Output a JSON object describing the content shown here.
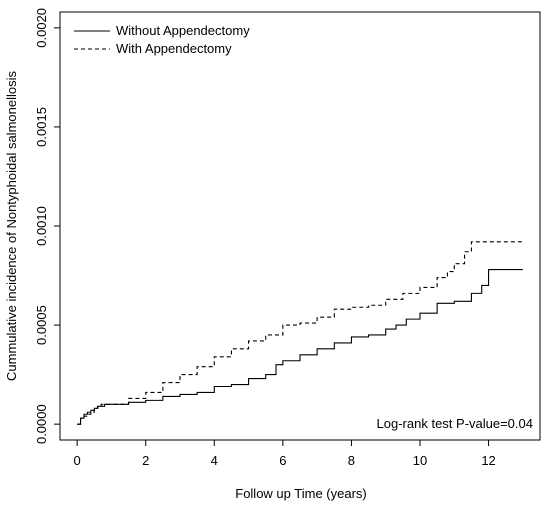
{
  "chart_data": {
    "type": "line",
    "title": "",
    "xlabel": "Follow up Time (years)",
    "ylabel": "Cummulative incidence of Nontyphoidal salmonellosis",
    "xlim": [
      -0.5,
      13.5
    ],
    "ylim": [
      -8e-05,
      0.00208
    ],
    "x_ticks": [
      0,
      2,
      4,
      6,
      8,
      10,
      12
    ],
    "x_tick_labels": [
      "0",
      "2",
      "4",
      "6",
      "8",
      "10",
      "12"
    ],
    "y_ticks": [
      0,
      0.0005,
      0.001,
      0.0015,
      0.002
    ],
    "y_tick_labels": [
      "0.0000",
      "0.0005",
      "0.0010",
      "0.0015",
      "0.0020"
    ],
    "legend_position": "top-left",
    "grid": false,
    "annotation": "Log-rank test P-value=0.04",
    "series": [
      {
        "name": "Without Appendectomy",
        "line_style": "solid",
        "color": "#000000",
        "x": [
          0,
          0.1,
          0.2,
          0.3,
          0.4,
          0.5,
          0.6,
          0.7,
          0.8,
          0.9,
          1.0,
          1.5,
          2.0,
          2.5,
          3.0,
          3.5,
          4.0,
          4.5,
          5.0,
          5.5,
          5.8,
          6.0,
          6.5,
          7.0,
          7.5,
          8.0,
          8.5,
          9.0,
          9.3,
          9.6,
          10.0,
          10.5,
          11.0,
          11.5,
          11.8,
          12.0,
          13.0
        ],
        "values": [
          0.0,
          3e-05,
          5e-05,
          6e-05,
          7e-05,
          8e-05,
          9e-05,
          9e-05,
          0.0001,
          0.0001,
          0.0001,
          0.00011,
          0.00012,
          0.00014,
          0.00015,
          0.00016,
          0.00019,
          0.0002,
          0.00023,
          0.00025,
          0.0003,
          0.00032,
          0.00035,
          0.00038,
          0.00041,
          0.00044,
          0.00045,
          0.00048,
          0.0005,
          0.00053,
          0.00056,
          0.00061,
          0.00062,
          0.00066,
          0.0007,
          0.00078,
          0.00078
        ]
      },
      {
        "name": "With Appendectomy",
        "line_style": "dashed",
        "color": "#000000",
        "x": [
          0,
          0.1,
          0.2,
          0.3,
          0.4,
          0.5,
          0.6,
          0.7,
          0.8,
          1.0,
          1.5,
          2.0,
          2.5,
          3.0,
          3.5,
          4.0,
          4.5,
          5.0,
          5.5,
          6.0,
          6.5,
          7.0,
          7.5,
          8.0,
          8.5,
          9.0,
          9.5,
          10.0,
          10.5,
          10.8,
          11.0,
          11.3,
          11.5,
          13.0
        ],
        "values": [
          0.0,
          3e-05,
          4e-05,
          5e-05,
          6e-05,
          8e-05,
          9e-05,
          0.0001,
          0.0001,
          0.0001,
          0.00013,
          0.00016,
          0.00021,
          0.00025,
          0.00029,
          0.00034,
          0.00038,
          0.00042,
          0.00045,
          0.0005,
          0.00051,
          0.00054,
          0.00058,
          0.00059,
          0.0006,
          0.00063,
          0.00066,
          0.00069,
          0.00074,
          0.00077,
          0.00081,
          0.00087,
          0.00092,
          0.00092
        ]
      }
    ]
  }
}
